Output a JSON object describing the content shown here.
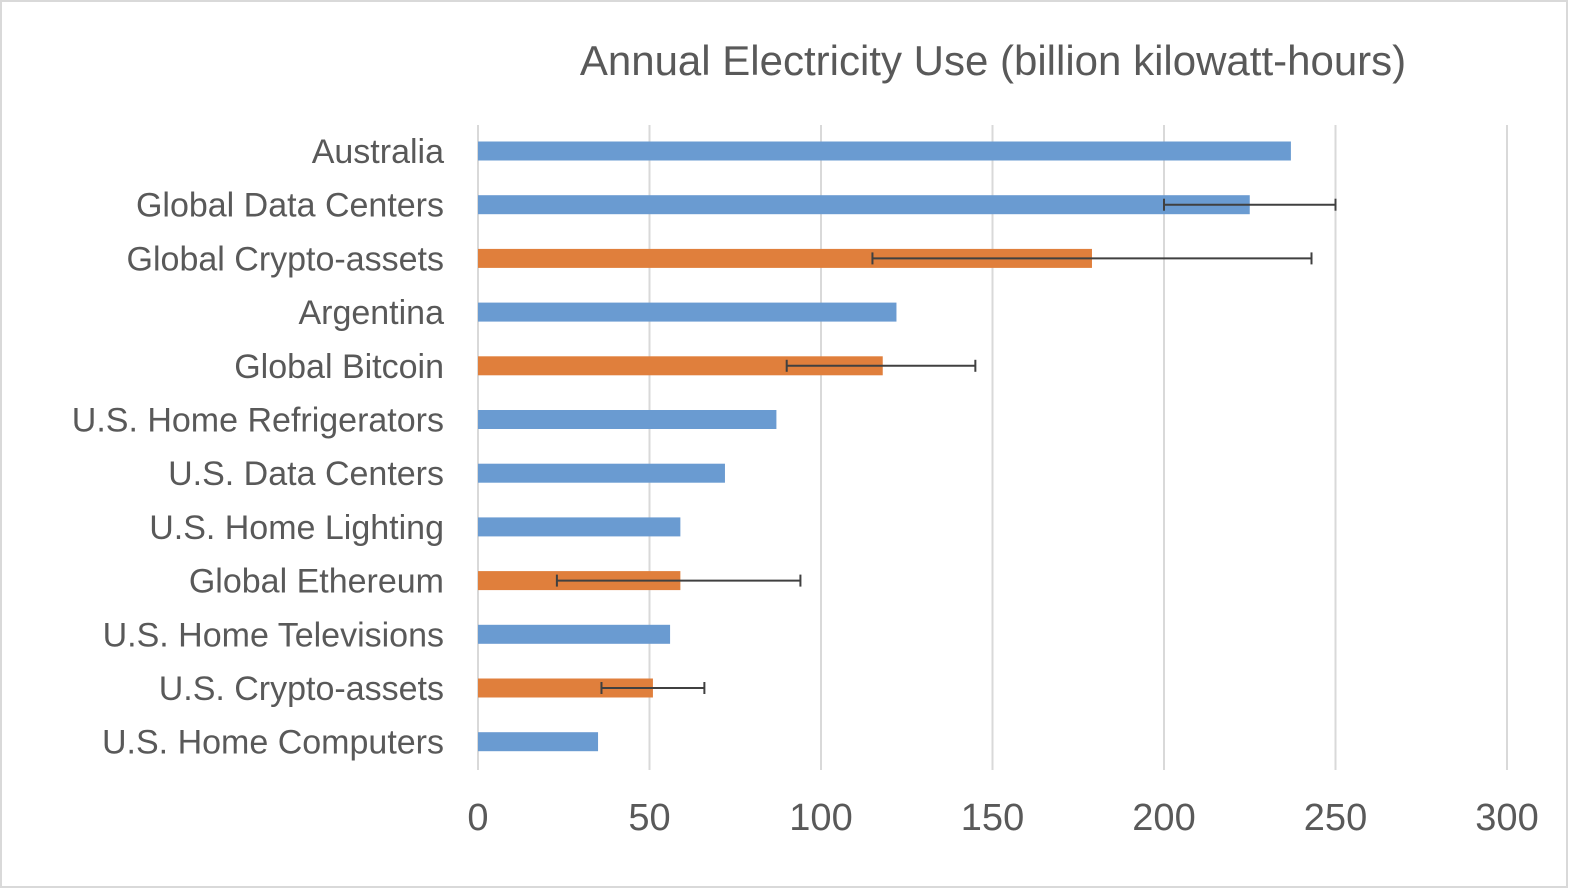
{
  "chart_data": {
    "type": "bar",
    "orientation": "horizontal",
    "title": "Annual Electricity Use (billion kilowatt-hours)",
    "xlabel": "",
    "ylabel": "",
    "xlim": [
      0,
      300
    ],
    "x_ticks": [
      "0",
      "50",
      "100",
      "150",
      "200",
      "250",
      "300"
    ],
    "grid": "vertical",
    "legend": "none",
    "colors": {
      "general": "#6a9bd1",
      "crypto": "#e07f3c",
      "error_bar": "#404040",
      "grid": "#d9d9d9",
      "frame": "#d9d9d9"
    },
    "bars": [
      {
        "category": "Australia",
        "value": 237,
        "group": "general"
      },
      {
        "category": "Global Data Centers",
        "value": 225,
        "group": "general",
        "error_low": 200,
        "error_high": 250
      },
      {
        "category": "Global Crypto-assets",
        "value": 179,
        "group": "crypto",
        "error_low": 115,
        "error_high": 243
      },
      {
        "category": "Argentina",
        "value": 122,
        "group": "general"
      },
      {
        "category": "Global Bitcoin",
        "value": 118,
        "group": "crypto",
        "error_low": 90,
        "error_high": 145
      },
      {
        "category": "U.S. Home Refrigerators",
        "value": 87,
        "group": "general"
      },
      {
        "category": "U.S. Data Centers",
        "value": 72,
        "group": "general"
      },
      {
        "category": "U.S. Home Lighting",
        "value": 59,
        "group": "general"
      },
      {
        "category": "Global Ethereum",
        "value": 59,
        "group": "crypto",
        "error_low": 23,
        "error_high": 94
      },
      {
        "category": "U.S. Home Televisions",
        "value": 56,
        "group": "general"
      },
      {
        "category": "U.S. Crypto-assets",
        "value": 51,
        "group": "crypto",
        "error_low": 36,
        "error_high": 66
      },
      {
        "category": "U.S. Home Computers",
        "value": 35,
        "group": "general"
      }
    ]
  }
}
